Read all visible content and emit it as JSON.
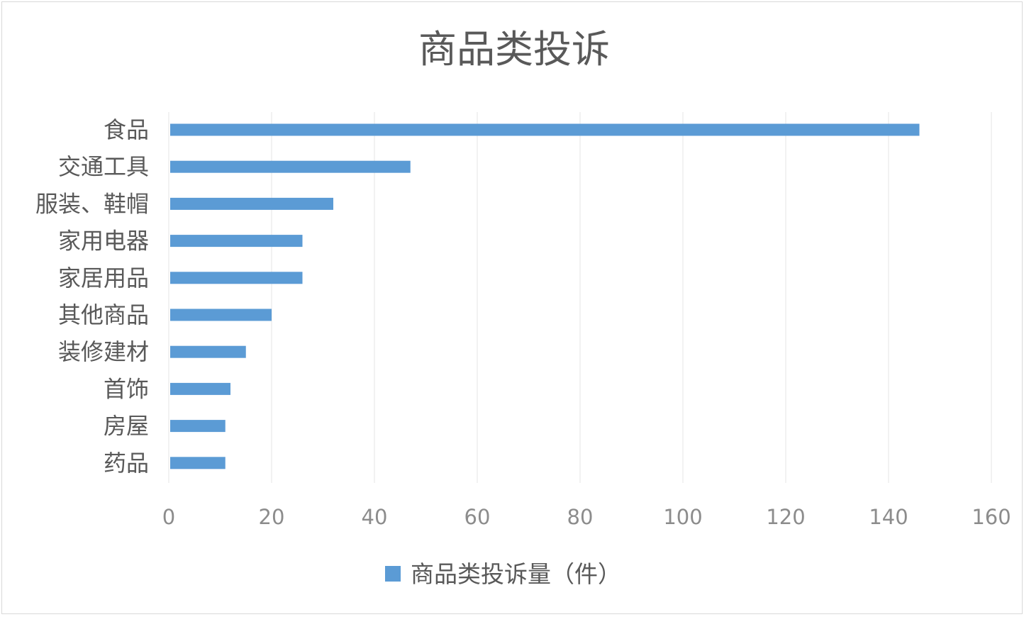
{
  "colors": {
    "bar": "#5b9bd5",
    "grid": "#e6e6e6",
    "text": "#595959",
    "tick": "#8c8c8c"
  },
  "chart_data": {
    "type": "bar",
    "orientation": "horizontal",
    "title": "商品类投诉",
    "categories": [
      "食品",
      "交通工具",
      "服装、鞋帽",
      "家用电器",
      "家居用品",
      "其他商品",
      "装修建材",
      "首饰",
      "房屋",
      "药品"
    ],
    "series": [
      {
        "name": "商品类投诉量（件）",
        "values": [
          146,
          47,
          32,
          26,
          26,
          20,
          15,
          12,
          11,
          11
        ]
      }
    ],
    "xlim": [
      0,
      160
    ],
    "xticks": [
      0,
      20,
      40,
      60,
      80,
      100,
      120,
      140,
      160
    ],
    "grid": "vertical",
    "legend_position": "bottom"
  }
}
